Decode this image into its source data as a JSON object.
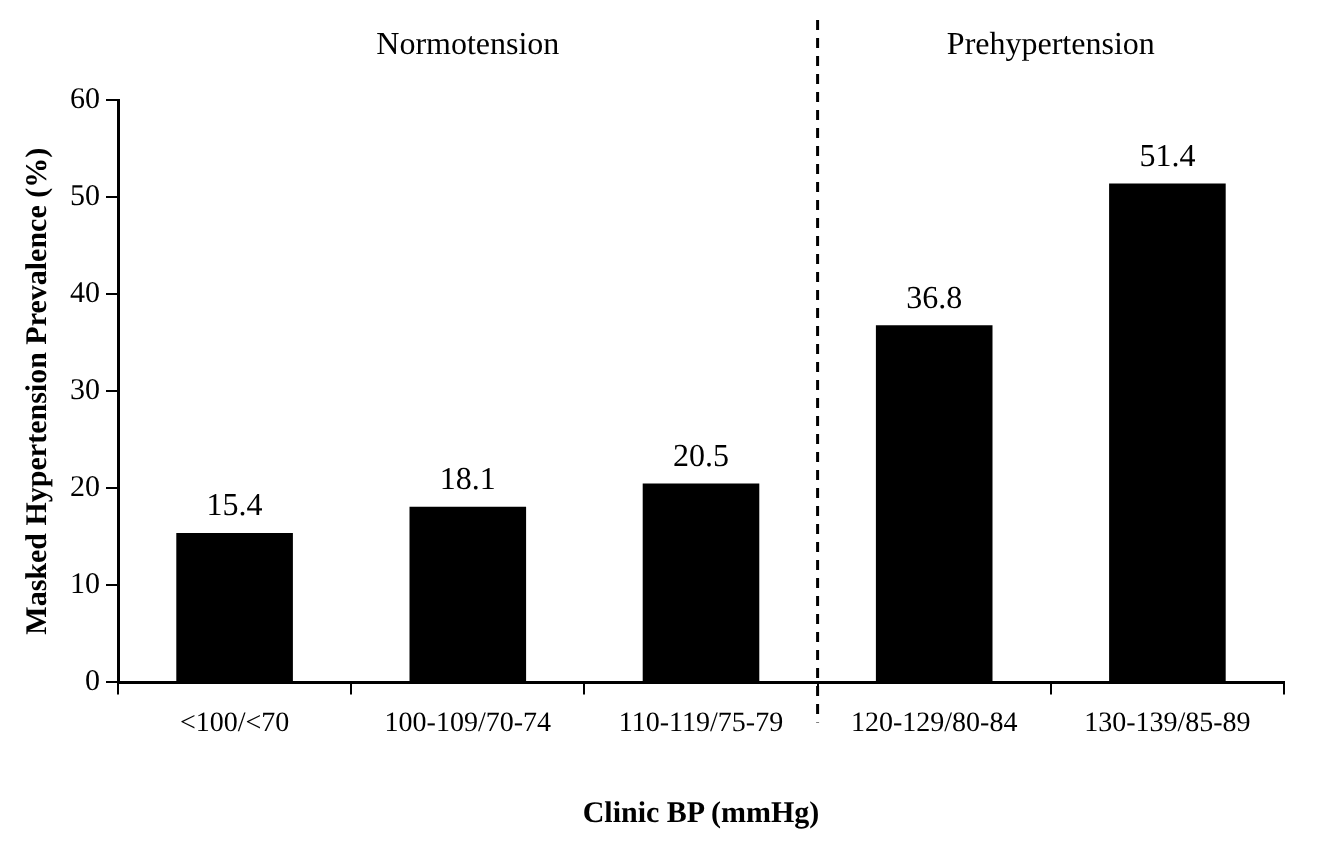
{
  "chart_data": {
    "type": "bar",
    "xlabel": "Clinic BP (mmHg)",
    "ylabel": "Masked Hypertension Prevalence (%)",
    "categories": [
      "<100/<70",
      "100-109/70-74",
      "110-119/75-79",
      "120-129/80-84",
      "130-139/85-89"
    ],
    "values": [
      15.4,
      18.1,
      20.5,
      36.8,
      51.4
    ],
    "color": "#000000",
    "ylim": [
      0,
      60
    ],
    "yticks": [
      0,
      10,
      20,
      30,
      40,
      50,
      60
    ],
    "grid": false,
    "legend": false,
    "data_labels": true,
    "annotations": [
      "Normotension",
      "Prehypertension"
    ]
  }
}
